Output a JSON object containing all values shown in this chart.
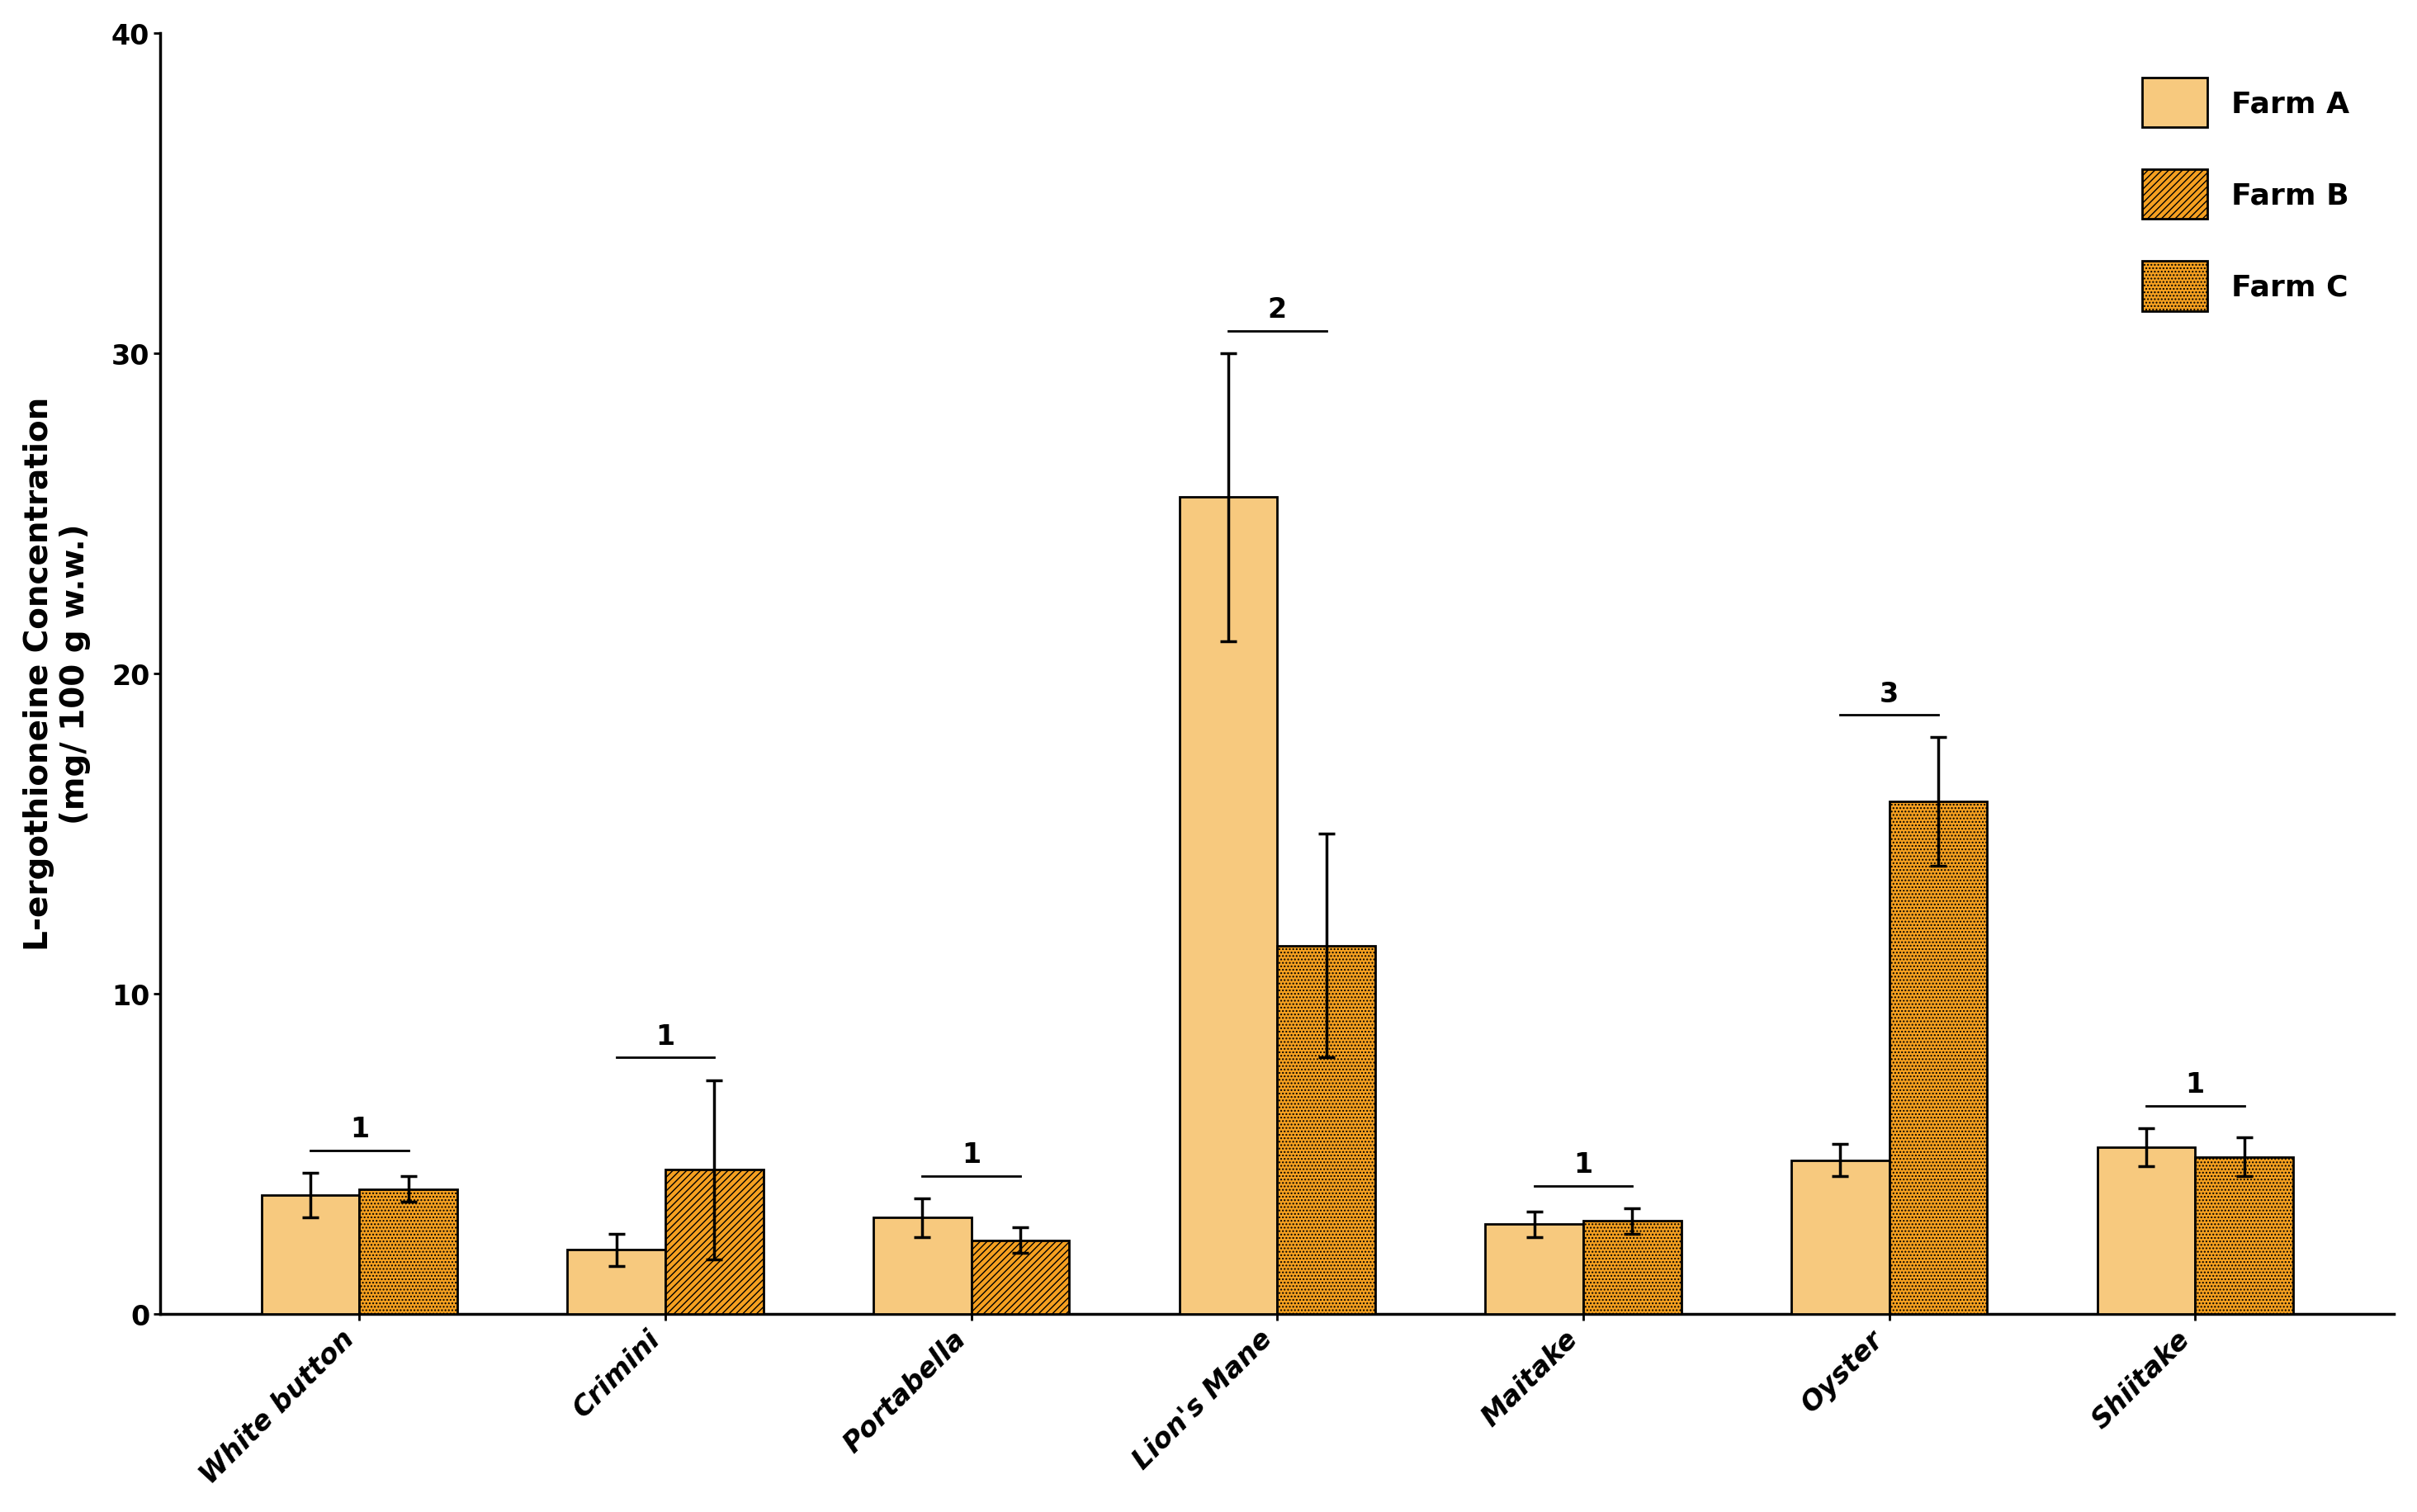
{
  "categories": [
    "White button",
    "Crimini",
    "Portabella",
    "Lion's Mane",
    "Maitake",
    "Oyster",
    "Shiitake"
  ],
  "farm_a_values": [
    3.7,
    2.0,
    3.0,
    25.5,
    2.8,
    4.8,
    5.2
  ],
  "farm_a_errors": [
    0.7,
    0.5,
    0.6,
    4.5,
    0.4,
    0.5,
    0.6
  ],
  "second_values": [
    3.9,
    4.5,
    2.3,
    11.5,
    2.9,
    16.0,
    4.9
  ],
  "second_errors": [
    0.4,
    2.8,
    0.4,
    3.5,
    0.4,
    2.0,
    0.6
  ],
  "second_farm": [
    2,
    1,
    1,
    2,
    2,
    2,
    2
  ],
  "significance_labels": [
    "1",
    "1",
    "1",
    "2",
    "1",
    "3",
    "1"
  ],
  "ylabel_line1": "L-ergothioneine Concentration",
  "ylabel_line2": "(mg/ 100 g w.w.)",
  "ylim": [
    0,
    40
  ],
  "yticks": [
    0,
    10,
    20,
    30,
    40
  ],
  "color_A": "#F7C97E",
  "color_B": "#F5A020",
  "color_C": "#F5A020",
  "edge_color": "#000000",
  "farm_a_label": "Farm A",
  "farm_b_label": "Farm B",
  "farm_c_label": "Farm C",
  "background_color": "#ffffff",
  "bar_width": 0.32,
  "legend_fontsize": 26,
  "ylabel_fontsize": 28,
  "tick_fontsize": 24,
  "annotation_fontsize": 24
}
